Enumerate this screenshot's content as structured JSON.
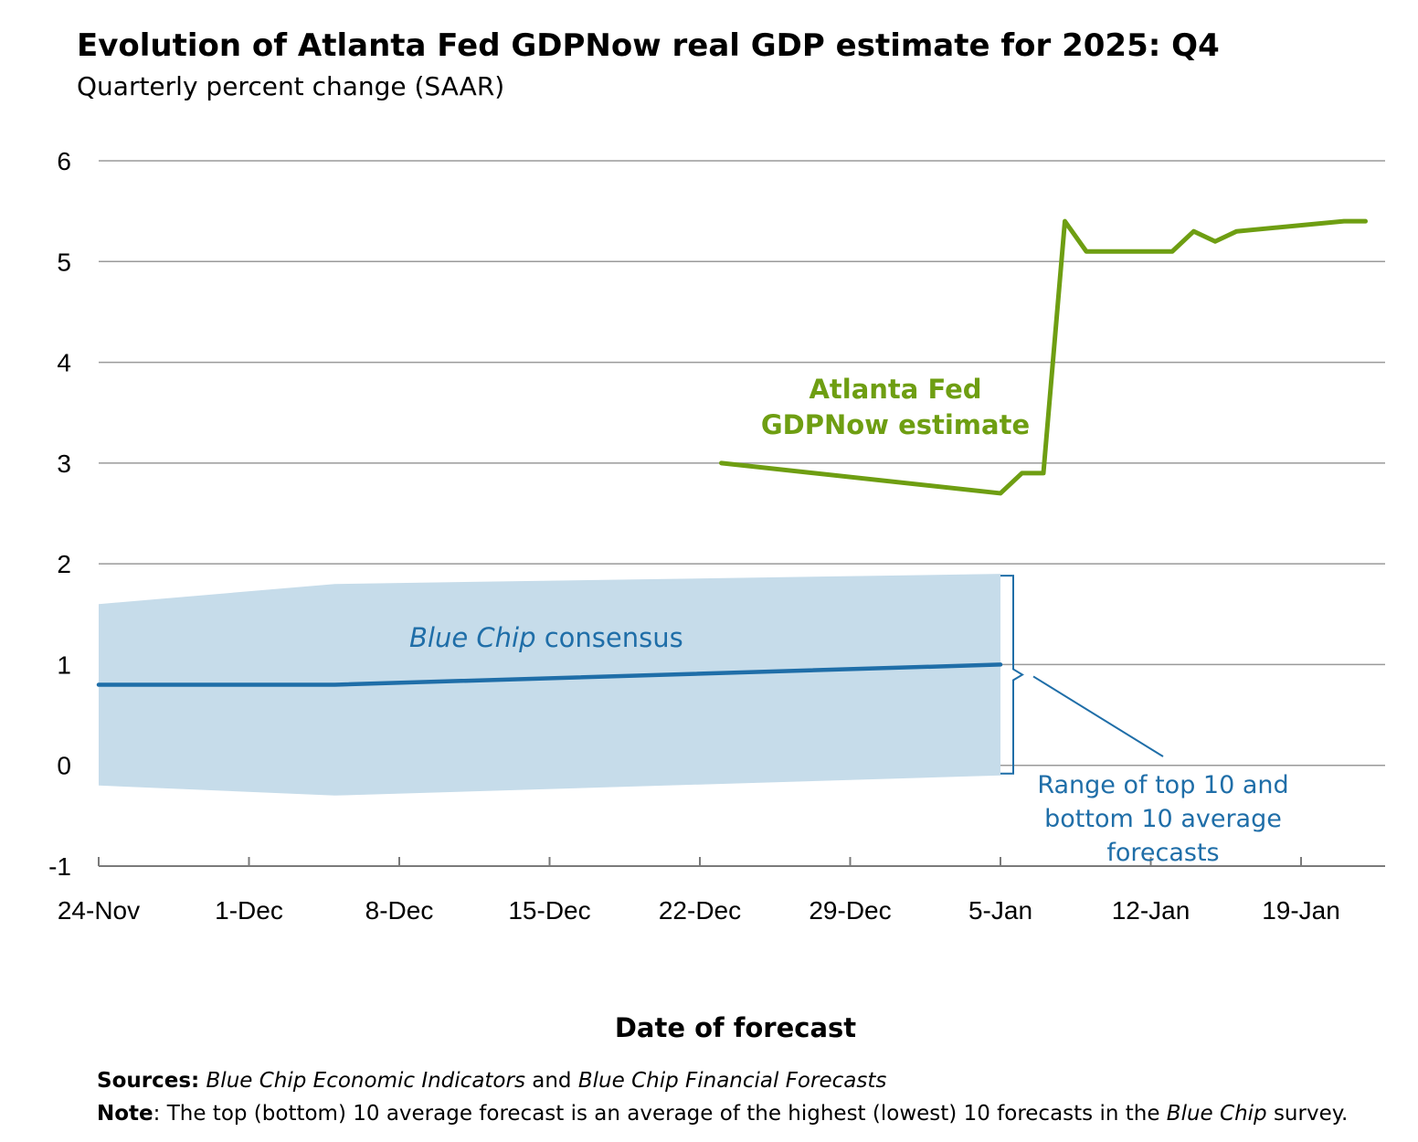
{
  "title": "Evolution of Atlanta Fed GDPNow real GDP estimate for 2025: Q4",
  "subtitle": "Quarterly percent change (SAAR)",
  "xlabel": "Date of forecast",
  "footer": {
    "sources_label": "Sources:",
    "sources_part1": "Blue Chip Economic Indicators",
    "sources_and": " and ",
    "sources_part2": "Blue Chip Financial Forecasts",
    "note_label": "Note",
    "note_text": ": The top (bottom) 10 average forecast is an average of the highest (lowest) 10 forecasts in the ",
    "note_italic": "Blue Chip",
    "note_end": " survey."
  },
  "chart_data": {
    "type": "line",
    "x_ticks": [
      "24-Nov",
      "1-Dec",
      "8-Dec",
      "15-Dec",
      "22-Dec",
      "29-Dec",
      "5-Jan",
      "12-Jan",
      "19-Jan"
    ],
    "y_ticks": [
      "6",
      "5",
      "4",
      "3",
      "2",
      "1",
      "0",
      "-1"
    ],
    "ylim": [
      -1,
      6
    ],
    "grid": true,
    "series": [
      {
        "name": "Atlanta Fed GDPNow estimate",
        "color": "#6e9e12",
        "points": [
          {
            "x": "2025-12-23",
            "y": 3.0
          },
          {
            "x": "2026-01-05",
            "y": 2.7
          },
          {
            "x": "2026-01-06",
            "y": 2.9
          },
          {
            "x": "2026-01-07",
            "y": 2.9
          },
          {
            "x": "2026-01-08",
            "y": 5.4
          },
          {
            "x": "2026-01-09",
            "y": 5.1
          },
          {
            "x": "2026-01-13",
            "y": 5.1
          },
          {
            "x": "2026-01-14",
            "y": 5.3
          },
          {
            "x": "2026-01-15",
            "y": 5.2
          },
          {
            "x": "2026-01-16",
            "y": 5.3
          },
          {
            "x": "2026-01-21",
            "y": 5.4
          },
          {
            "x": "2026-01-22",
            "y": 5.4
          }
        ]
      },
      {
        "name": "Blue Chip consensus",
        "color": "#1f6ea8",
        "points": [
          {
            "x": "2025-11-24",
            "y": 0.8
          },
          {
            "x": "2025-12-05",
            "y": 0.8
          },
          {
            "x": "2026-01-05",
            "y": 1.0
          }
        ]
      }
    ],
    "range": {
      "color": "#c6dcea",
      "points": [
        {
          "x": "2025-11-24",
          "high": 1.6,
          "low": -0.2
        },
        {
          "x": "2025-12-05",
          "high": 1.8,
          "low": -0.3
        },
        {
          "x": "2026-01-05",
          "high": 1.9,
          "low": -0.1
        }
      ]
    },
    "annotations": {
      "gdpnow_line1": "Atlanta Fed",
      "gdpnow_line2": "GDPNow estimate",
      "bluechip_italic": "Blue Chip",
      "bluechip_rest": " consensus",
      "range_line1": "Range of top 10 and",
      "range_line2": "bottom 10 average",
      "range_line3": "forecasts"
    }
  }
}
